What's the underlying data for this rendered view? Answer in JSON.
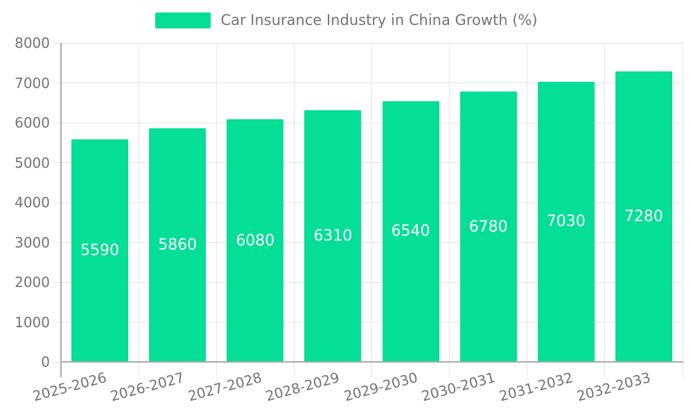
{
  "legend": {
    "label": "Car Insurance Industry in China Growth (%)"
  },
  "chart_data": {
    "type": "bar",
    "title": "Car Insurance Industry in China Growth (%)",
    "categories": [
      "2025-2026",
      "2026-2027",
      "2027-2028",
      "2028-2029",
      "2029-2030",
      "2030-2031",
      "2031-2032",
      "2032-2033"
    ],
    "values": [
      5590,
      5860,
      6080,
      6310,
      6540,
      6780,
      7030,
      7280
    ],
    "xlabel": "",
    "ylabel": "",
    "ylim": [
      0,
      8000
    ],
    "ytick_interval": 1000,
    "grid": true,
    "legend_position": "top-center",
    "x_label_rotation_deg": -15,
    "colors": {
      "bar": "#05DE96",
      "bar_value_text": "#ffffff",
      "axis_text": "#737373",
      "grid_line": "#e4e4e4",
      "axis_line": "#a9a9a9",
      "background": "#ffffff"
    }
  }
}
